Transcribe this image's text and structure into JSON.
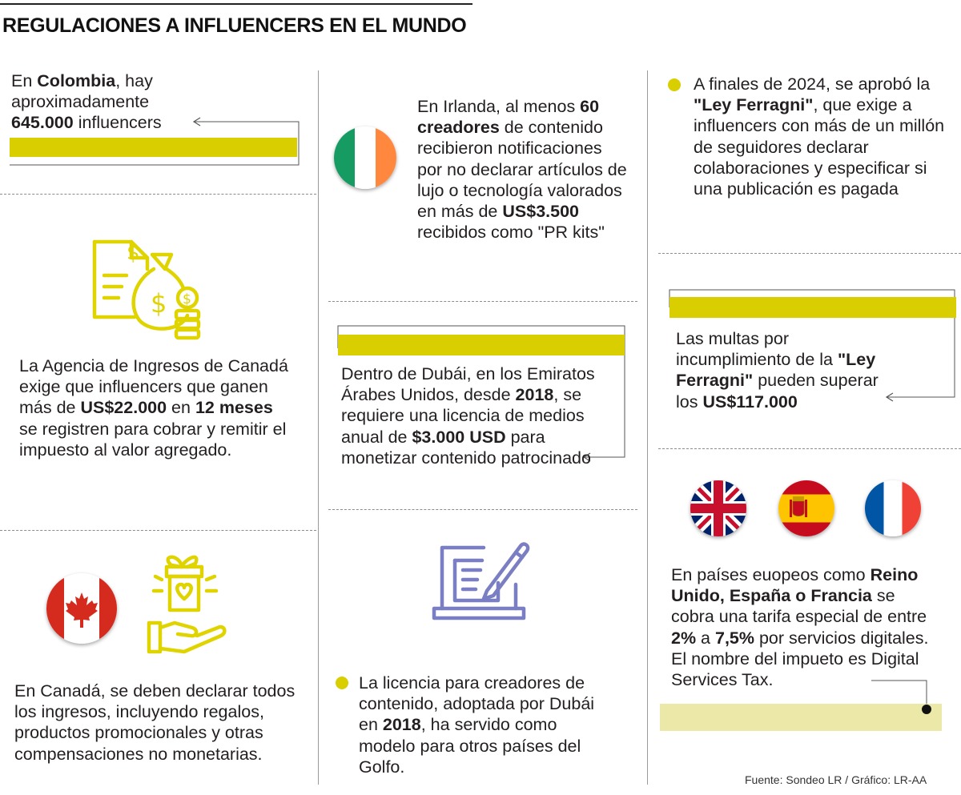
{
  "title": "REGULACIONES A INFLUENCERS EN EL MUNDO",
  "colombia": {
    "p1": "En ",
    "b1": "Colombia",
    "p2": ", hay aproximadamente ",
    "b2": "645.000",
    "p3": " influencers"
  },
  "canada_tax": {
    "p1": "La Agencia de Ingresos de Canadá exige que influencers que ganen más de ",
    "b1": "US$22.000",
    "p2": " en ",
    "b2": "12 meses",
    "p3": " se registren para cobrar y remitir el impuesto al valor agregado."
  },
  "canada_income": {
    "text": "En Canadá, se deben declarar todos los ingresos, incluyendo regalos, productos promocionales y otras compensaciones no monetarias."
  },
  "ireland": {
    "p1": "En Irlanda, al menos ",
    "b1": "60 creadores",
    "p2": " de contenido recibieron notificaciones por no declarar artículos de lujo o tecnología valorados en más de ",
    "b2": "US$3.500",
    "p3": " recibidos como \"PR kits\""
  },
  "dubai": {
    "p1": "Dentro de Dubái, en los Emiratos Árabes Unidos, desde ",
    "b1": "2018",
    "p2": ", se requiere una licencia de medios anual de ",
    "b2": "$3.000 USD",
    "p3": " para monetizar contenido patrocinado"
  },
  "gulf": {
    "p1": "La licencia para creadores de contenido, adoptada por Dubái  en ",
    "b1": "2018",
    "p2": ", ha servido como modelo para otros países del Golfo."
  },
  "ferragni": {
    "p1": "A finales de 2024, se aprobó la ",
    "b1": "\"Ley Ferragni\"",
    "p2": ", que exige a influencers con más de un millón de seguidores declarar colaboraciones y especificar si una publicación es pagada"
  },
  "fines": {
    "p1": "Las multas por incumplimiento de la ",
    "b1": "\"Ley Ferragni\"",
    "p2": " pueden superar los ",
    "b2": "US$117.000"
  },
  "europe": {
    "p1": "En países euopeos como ",
    "b1": "Reino Unido, España o Francia",
    "p2": " se cobra una tarifa especial de entre ",
    "b2": "2%",
    "p3": " a ",
    "b3": "7,5%",
    "p4": " por servicios digitales. El nombre del impueto es Digital Services Tax."
  },
  "source": "Fuente: Sondeo LR / Gráfico: LR-AA",
  "colors": {
    "accent": "#d9cf00",
    "accent_light": "#ece8a8",
    "icon_yellow": "#e0d400",
    "icon_purple": "#7a7ec2"
  }
}
